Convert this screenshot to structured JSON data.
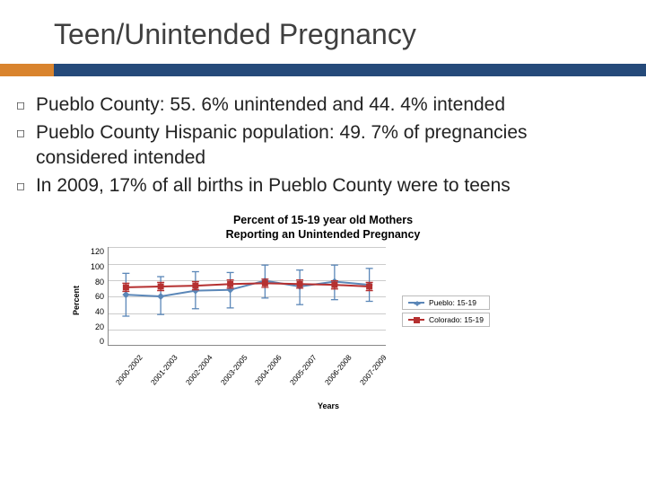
{
  "slide": {
    "title": "Teen/Unintended Pregnancy",
    "accent_colors": {
      "orange": "#d9842e",
      "blue": "#254a7a"
    },
    "bullets": [
      "Pueblo County: 55. 6% unintended and 44. 4% intended",
      "Pueblo County Hispanic population: 49. 7% of pregnancies considered intended",
      "In 2009, 17% of all births in Pueblo County were to teens"
    ]
  },
  "chart": {
    "type": "line",
    "title_line1": "Percent of 15-19 year old Mothers",
    "title_line2": "Reporting an Unintended Pregnancy",
    "ylabel": "Percent",
    "xlabel": "Years",
    "ylim": [
      0,
      120
    ],
    "ytick_step": 20,
    "yticks": [
      120,
      100,
      80,
      60,
      40,
      20,
      0
    ],
    "grid_color": "#cccccc",
    "axis_color": "#888888",
    "background_color": "#ffffff",
    "title_fontsize": 12.5,
    "label_fontsize": 9,
    "tick_fontsize": 9,
    "categories": [
      "2000-2002",
      "2001-2003",
      "2002-2004",
      "2003-2005",
      "2004-2006",
      "2005-2007",
      "2006-2008",
      "2007-2009"
    ],
    "series": [
      {
        "name": "Pueblo: 15-19",
        "color": "#5b87b8",
        "marker": "diamond",
        "line_width": 2,
        "values": [
          62,
          60,
          67,
          68,
          79,
          72,
          78,
          74
        ],
        "err_low": [
          36,
          38,
          45,
          46,
          58,
          50,
          56,
          54
        ],
        "err_high": [
          88,
          84,
          90,
          89,
          98,
          92,
          98,
          94
        ]
      },
      {
        "name": "Colorado: 15-19",
        "color": "#b53030",
        "marker": "square",
        "line_width": 2,
        "values": [
          71,
          72,
          73,
          75,
          76,
          75,
          74,
          72
        ],
        "err_low": [
          66,
          67,
          68,
          70,
          71,
          70,
          69,
          67
        ],
        "err_high": [
          76,
          77,
          78,
          80,
          81,
          80,
          79,
          77
        ]
      }
    ]
  }
}
